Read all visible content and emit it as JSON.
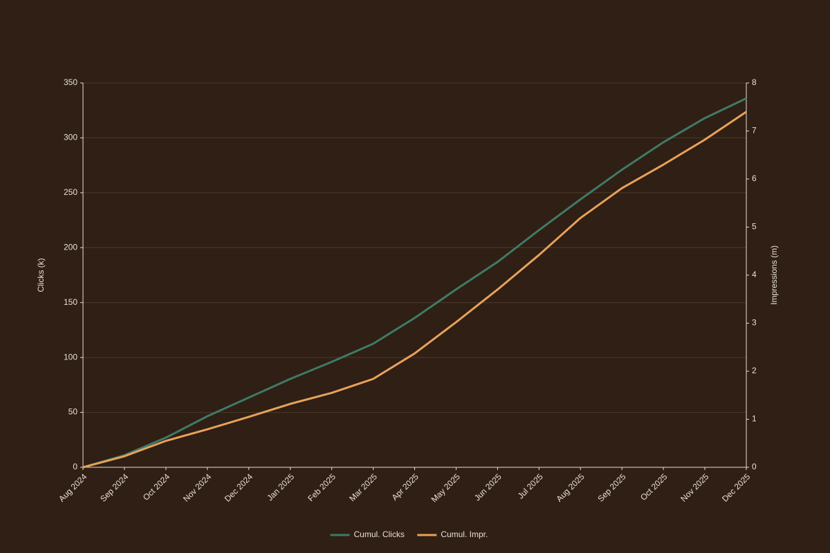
{
  "chart_data": {
    "type": "line",
    "y_label": "Clicks (k)",
    "y2_label": "Impressions (m)",
    "categories": [
      "Aug 2024",
      "Sep 2024",
      "Oct 2024",
      "Nov 2024",
      "Dec 2024",
      "Jan 2025",
      "Feb 2025",
      "Mar 2025",
      "Apr 2025",
      "May 2025",
      "Jun 2025",
      "Jul 2025",
      "Aug 2025",
      "Sep 2025",
      "Oct 2025",
      "Nov 2025",
      "Dec 2025"
    ],
    "series": [
      {
        "name": "Cumul. Clicks",
        "color": "#3f7a67",
        "values": [
          0,
          11,
          27,
          46.5,
          63.5,
          80.5,
          96,
          112.5,
          136,
          162,
          187,
          216,
          244,
          271,
          296,
          318,
          336
        ]
      },
      {
        "name": "Cumul. Impr.",
        "color": "#e8a25a",
        "axis": "y2",
        "values": [
          0,
          0.23,
          0.55,
          0.79,
          1.05,
          1.32,
          1.55,
          1.84,
          2.37,
          3.02,
          3.7,
          4.42,
          5.19,
          5.81,
          6.3,
          6.82,
          7.4
        ]
      }
    ],
    "ylim": [
      0,
      350
    ],
    "yticks": [
      0,
      50,
      100,
      150,
      200,
      250,
      300,
      350
    ],
    "y2lim": [
      0,
      8
    ],
    "y2ticks": [
      0,
      1,
      2,
      3,
      4,
      5,
      6,
      7,
      8
    ],
    "grid": true,
    "legend": "bottom"
  }
}
